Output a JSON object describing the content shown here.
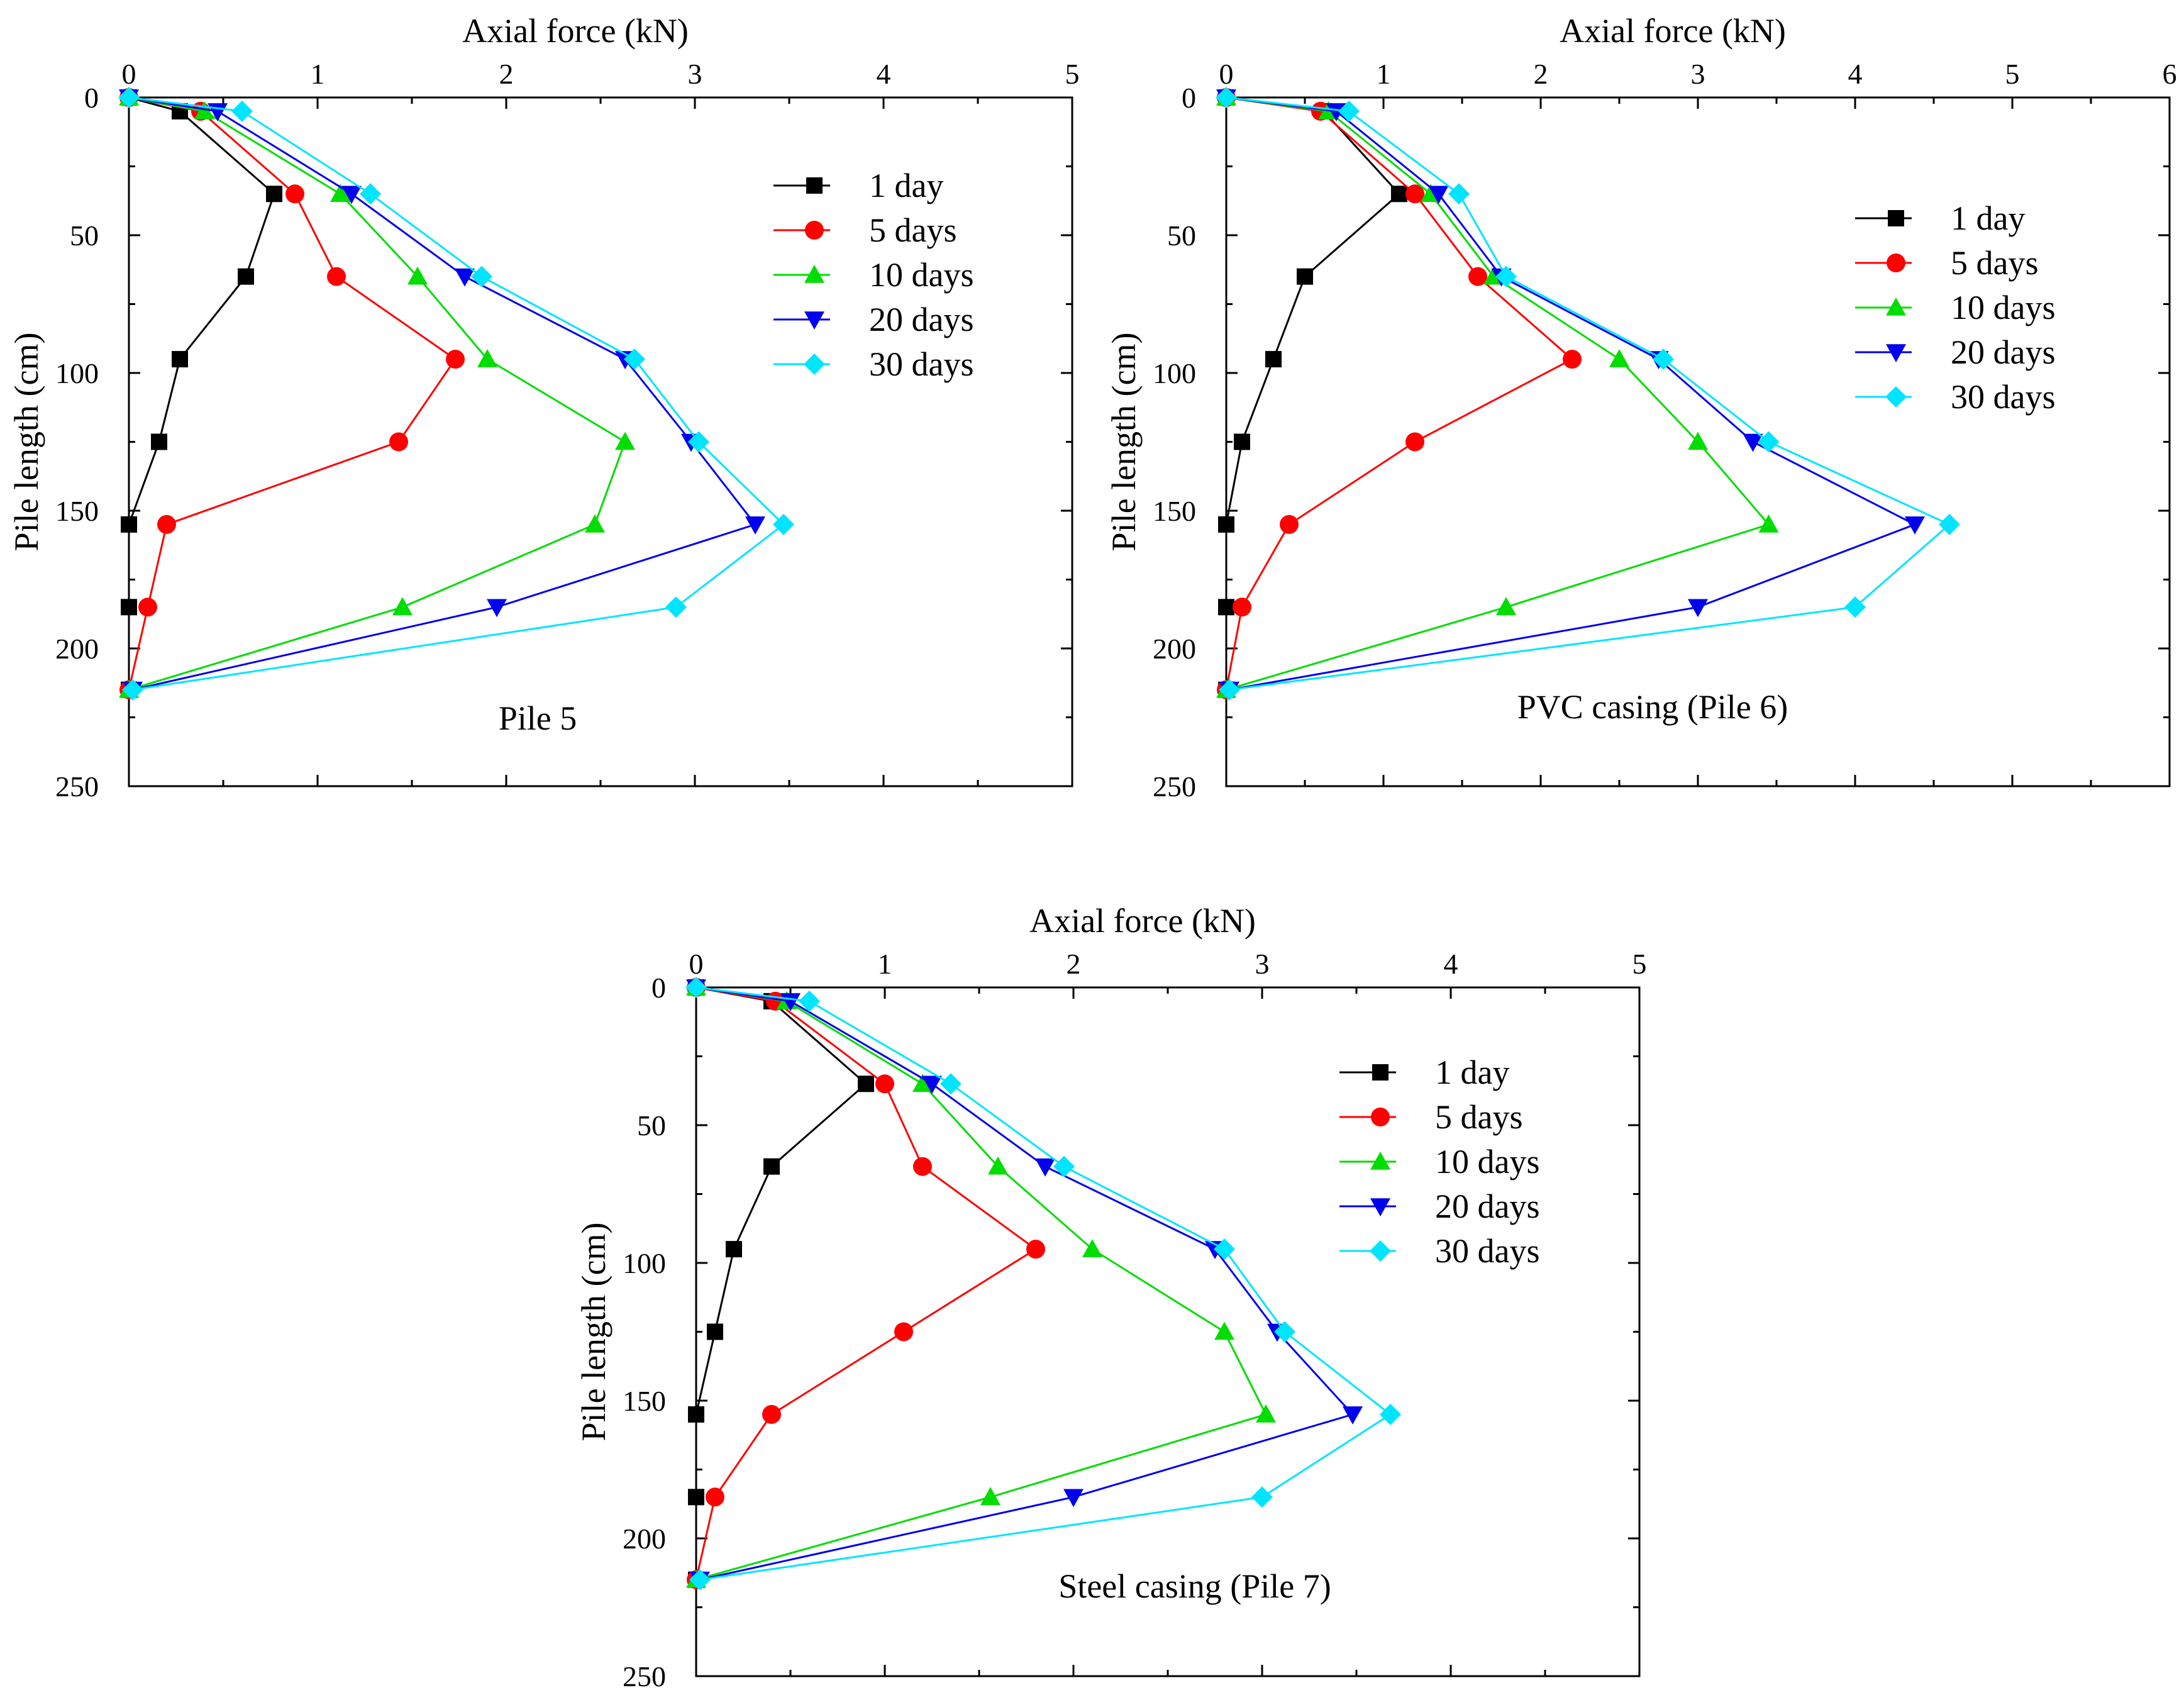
{
  "series_meta": [
    {
      "name": "1 day",
      "color": "#000000",
      "marker": "square"
    },
    {
      "name": "5 days",
      "color": "#ff0000",
      "marker": "circle"
    },
    {
      "name": "10 days",
      "color": "#00dd00",
      "marker": "triangle-up"
    },
    {
      "name": "20 days",
      "color": "#0000ee",
      "marker": "triangle-down"
    },
    {
      "name": "30 days",
      "color": "#00e5ff",
      "marker": "diamond"
    }
  ],
  "chart_data": [
    {
      "type": "line",
      "title": "Pile 5",
      "xlabel": "Axial force (kN)",
      "ylabel": "Pile length (cm)",
      "xlim": [
        0,
        5
      ],
      "ylim": [
        0,
        250
      ],
      "y_inverted": true,
      "x_axis_position": "top",
      "x_ticks": [
        0,
        1,
        2,
        3,
        4,
        5
      ],
      "y_ticks": [
        0,
        50,
        100,
        150,
        200,
        250
      ],
      "legend_position": "top-right",
      "depth": [
        0,
        5,
        35,
        65,
        95,
        125,
        155,
        185,
        215
      ],
      "series": [
        {
          "name": "1 day",
          "values": [
            0,
            0.27,
            0.77,
            0.62,
            0.27,
            0.16,
            0.0,
            0.0,
            0.0
          ]
        },
        {
          "name": "5 days",
          "values": [
            0,
            0.38,
            0.88,
            1.1,
            1.73,
            1.43,
            0.2,
            0.1,
            0.0
          ]
        },
        {
          "name": "10 days",
          "values": [
            0,
            0.4,
            1.12,
            1.53,
            1.9,
            2.63,
            2.47,
            1.45,
            0.0
          ]
        },
        {
          "name": "20 days",
          "values": [
            0,
            0.47,
            1.18,
            1.78,
            2.63,
            2.98,
            3.32,
            1.95,
            0.02
          ]
        },
        {
          "name": "30 days",
          "values": [
            0,
            0.6,
            1.28,
            1.87,
            2.68,
            3.02,
            3.47,
            2.9,
            0.02
          ]
        }
      ]
    },
    {
      "type": "line",
      "title": "PVC casing (Pile 6)",
      "xlabel": "Axial force (kN)",
      "ylabel": "Pile length (cm)",
      "xlim": [
        0,
        6
      ],
      "ylim": [
        0,
        250
      ],
      "y_inverted": true,
      "x_axis_position": "top",
      "x_ticks": [
        0,
        1,
        2,
        3,
        4,
        5,
        6
      ],
      "y_ticks": [
        0,
        50,
        100,
        150,
        200,
        250
      ],
      "legend_position": "top-right",
      "depth": [
        0,
        5,
        35,
        65,
        95,
        125,
        155,
        185,
        215
      ],
      "series": [
        {
          "name": "1 day",
          "values": [
            0,
            0.62,
            1.1,
            0.5,
            0.3,
            0.1,
            0.0,
            0.0,
            0.0
          ]
        },
        {
          "name": "5 days",
          "values": [
            0,
            0.6,
            1.2,
            1.6,
            2.2,
            1.2,
            0.4,
            0.1,
            0.0
          ]
        },
        {
          "name": "10 days",
          "values": [
            0,
            0.65,
            1.3,
            1.7,
            2.5,
            3.0,
            3.45,
            1.78,
            0.0
          ]
        },
        {
          "name": "20 days",
          "values": [
            0,
            0.7,
            1.35,
            1.75,
            2.75,
            3.35,
            4.38,
            3.0,
            0.02
          ]
        },
        {
          "name": "30 days",
          "values": [
            0,
            0.78,
            1.48,
            1.78,
            2.78,
            3.45,
            4.6,
            4.0,
            0.02
          ]
        }
      ]
    },
    {
      "type": "line",
      "title": "Steel casing (Pile 7)",
      "xlabel": "Axial force (kN)",
      "ylabel": "Pile length (cm)",
      "xlim": [
        0,
        5
      ],
      "ylim": [
        0,
        250
      ],
      "y_inverted": true,
      "x_axis_position": "top",
      "x_ticks": [
        0,
        1,
        2,
        3,
        4,
        5
      ],
      "y_ticks": [
        0,
        50,
        100,
        150,
        200,
        250
      ],
      "legend_position": "top-right",
      "depth": [
        0,
        5,
        35,
        65,
        95,
        125,
        155,
        185,
        215
      ],
      "series": [
        {
          "name": "1 day",
          "values": [
            0,
            0.4,
            0.9,
            0.4,
            0.2,
            0.1,
            0.0,
            0.0,
            0.0
          ]
        },
        {
          "name": "5 days",
          "values": [
            0,
            0.42,
            1.0,
            1.2,
            1.8,
            1.1,
            0.4,
            0.1,
            0.0
          ]
        },
        {
          "name": "10 days",
          "values": [
            0,
            0.48,
            1.2,
            1.6,
            2.1,
            2.8,
            3.02,
            1.56,
            0.0
          ]
        },
        {
          "name": "20 days",
          "values": [
            0,
            0.5,
            1.25,
            1.85,
            2.75,
            3.08,
            3.48,
            2.0,
            0.02
          ]
        },
        {
          "name": "30 days",
          "values": [
            0,
            0.6,
            1.35,
            1.95,
            2.8,
            3.12,
            3.68,
            3.0,
            0.02
          ]
        }
      ]
    }
  ]
}
